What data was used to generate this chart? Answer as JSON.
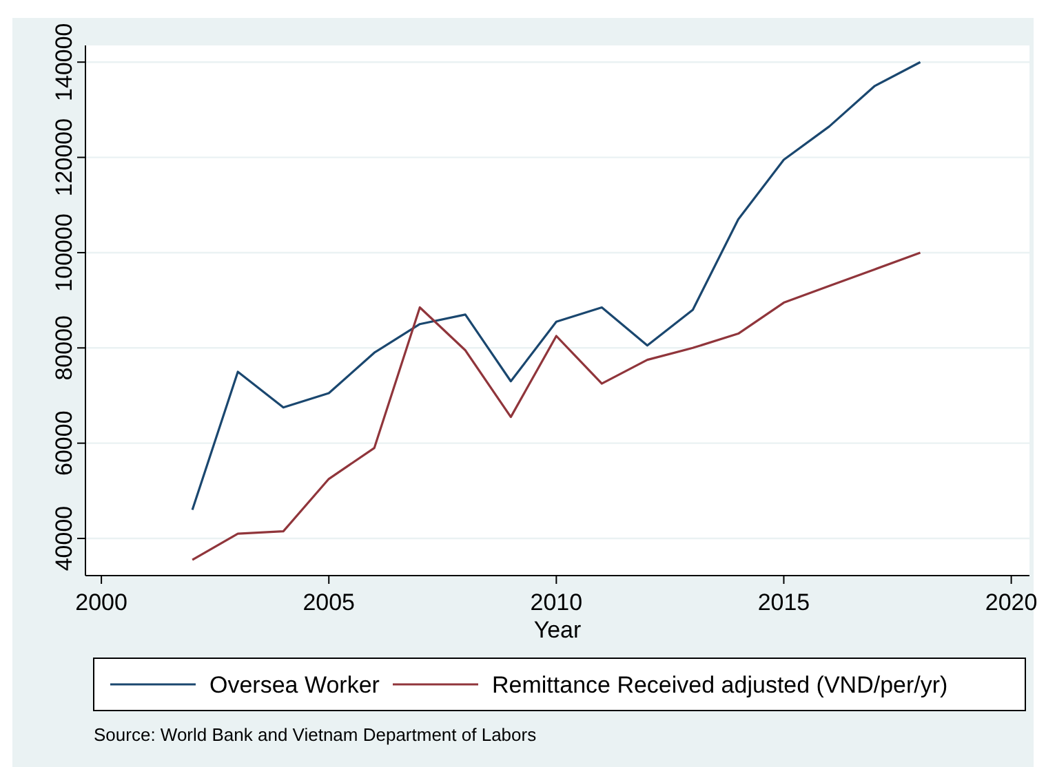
{
  "chart_data": {
    "type": "line",
    "xlabel": "Year",
    "x": [
      2002,
      2003,
      2004,
      2005,
      2006,
      2007,
      2008,
      2009,
      2010,
      2011,
      2012,
      2013,
      2014,
      2015,
      2016,
      2017,
      2018
    ],
    "series": [
      {
        "name": "Oversea Worker",
        "color": "#1a476f",
        "values": [
          46000,
          75000,
          67500,
          70500,
          79000,
          85000,
          87000,
          73000,
          85500,
          88500,
          80500,
          88000,
          107000,
          119500,
          126500,
          135000,
          140000
        ]
      },
      {
        "name": "Remittance Received adjusted (VND/per/yr)",
        "color": "#90353b",
        "values": [
          35500,
          41000,
          41500,
          52500,
          59000,
          88500,
          79500,
          65500,
          82500,
          72500,
          77500,
          80000,
          83000,
          89500,
          93000,
          96500,
          100000
        ]
      }
    ],
    "xlim": [
      1999.65,
      2020.4
    ],
    "xticks": [
      2000,
      2005,
      2010,
      2015,
      2020
    ],
    "ylim": [
      32200,
      143500
    ],
    "yticks": [
      40000,
      60000,
      80000,
      100000,
      120000,
      140000
    ],
    "grid": "y",
    "legend": "bottom",
    "line_style": "solid",
    "marker": "none",
    "annotations": [
      "Source: World Bank and Vietnam Department of Labors"
    ]
  }
}
